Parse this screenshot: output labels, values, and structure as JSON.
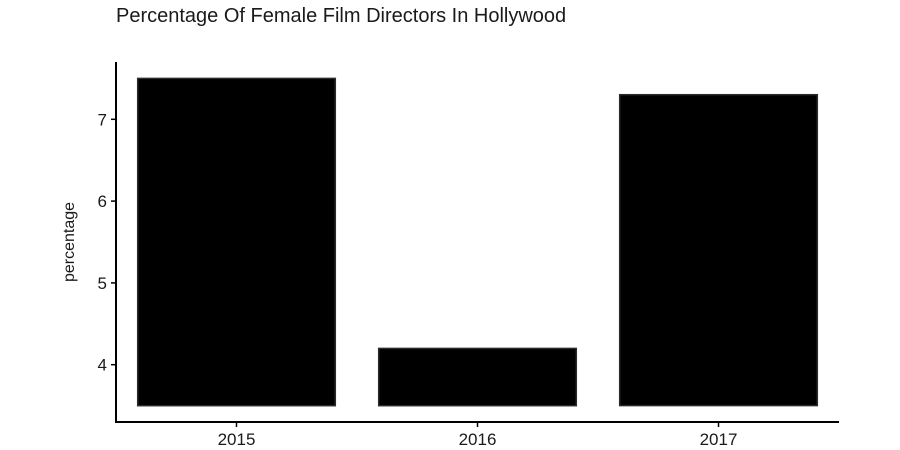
{
  "chart_data": {
    "type": "bar",
    "title": "Percentage Of Female Film Directors In Hollywood",
    "xlabel": "",
    "ylabel": "percentage",
    "categories": [
      "2015",
      "2016",
      "2017"
    ],
    "values": [
      7.5,
      4.2,
      7.3
    ],
    "bar_baseline": 3.5,
    "ylim": [
      3.3,
      7.7
    ],
    "yticks": [
      4,
      5,
      6,
      7
    ],
    "grid": false,
    "legend": "none",
    "colors": {
      "bar_fill": "#000000",
      "bar_stroke": "#2b2b2b",
      "axis": "#000000",
      "text": "#1a1a1a"
    }
  }
}
